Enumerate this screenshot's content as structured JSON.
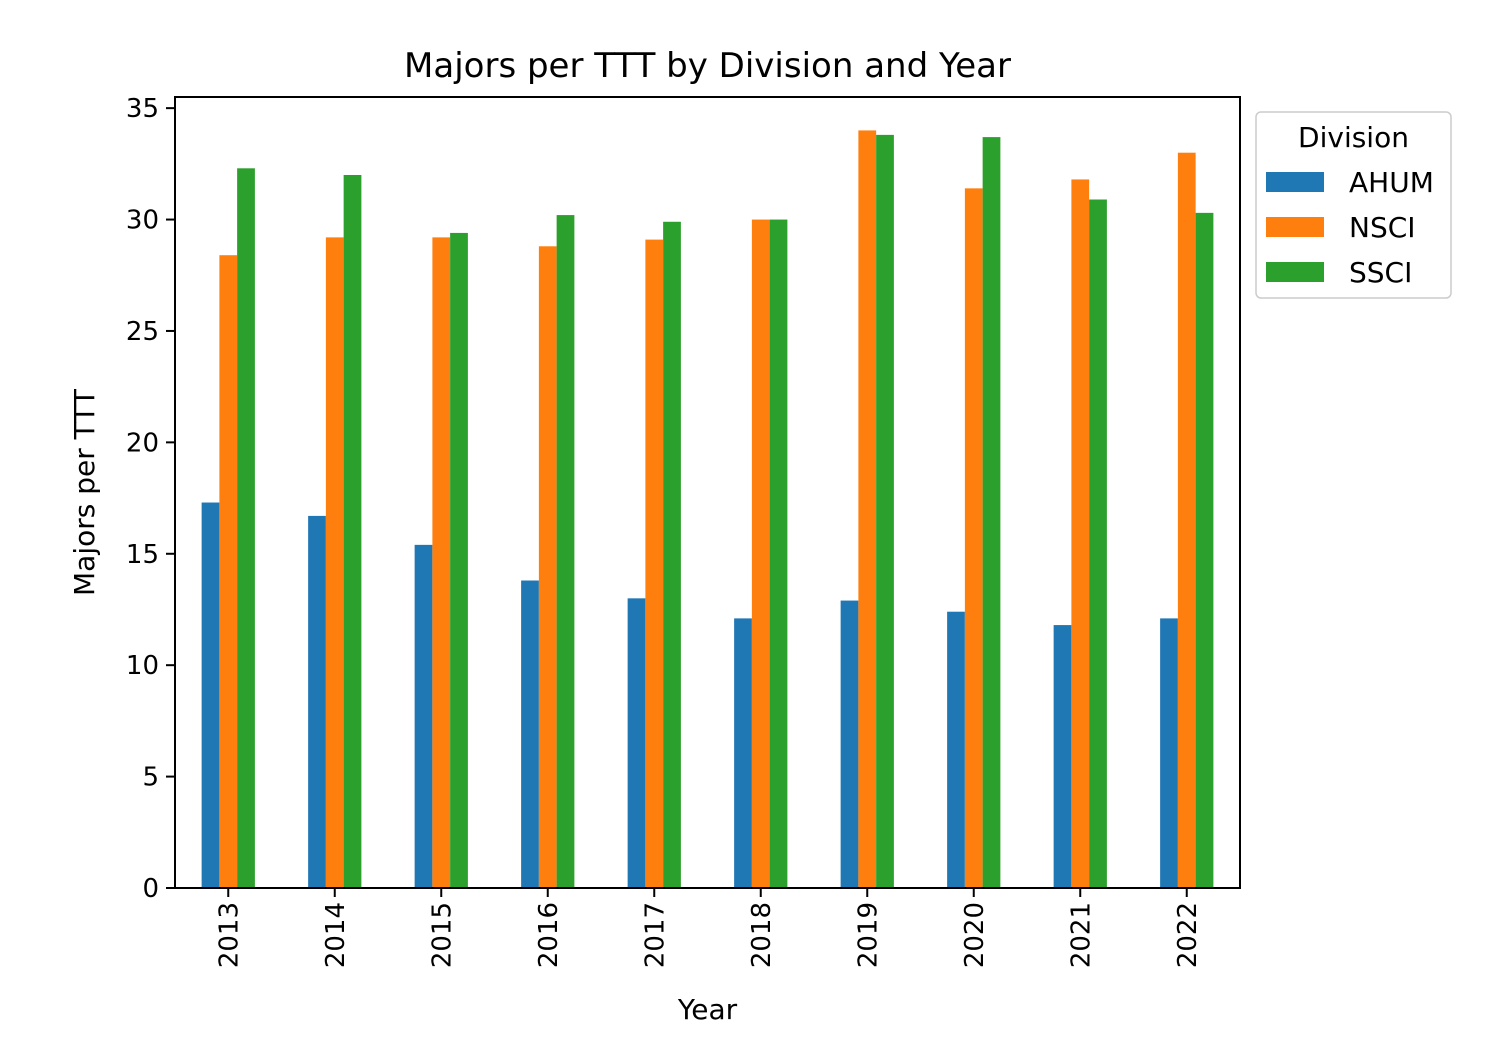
{
  "chart_data": {
    "type": "bar",
    "title": "Majors per TTT by Division and Year",
    "xlabel": "Year",
    "ylabel": "Majors per TTT",
    "categories": [
      "2013",
      "2014",
      "2015",
      "2016",
      "2017",
      "2018",
      "2019",
      "2020",
      "2021",
      "2022"
    ],
    "series": [
      {
        "name": "AHUM",
        "color": "#1f77b4",
        "values": [
          17.3,
          16.7,
          15.4,
          13.8,
          13.0,
          12.1,
          12.9,
          12.4,
          11.8,
          12.1
        ]
      },
      {
        "name": "NSCI",
        "color": "#ff7f0e",
        "values": [
          28.4,
          29.2,
          29.2,
          28.8,
          29.1,
          30.0,
          34.0,
          31.4,
          31.8,
          33.0
        ]
      },
      {
        "name": "SSCI",
        "color": "#2ca02c",
        "values": [
          32.3,
          32.0,
          29.4,
          30.2,
          29.9,
          30.0,
          33.8,
          33.7,
          30.9,
          30.3
        ]
      }
    ],
    "ylim": [
      0,
      35.5
    ],
    "yticks": [
      0,
      5,
      10,
      15,
      20,
      25,
      30,
      35
    ],
    "x_tick_rotation": "vertical",
    "grid": false,
    "legend": {
      "title": "Division",
      "placement": "outside-right-top"
    }
  }
}
